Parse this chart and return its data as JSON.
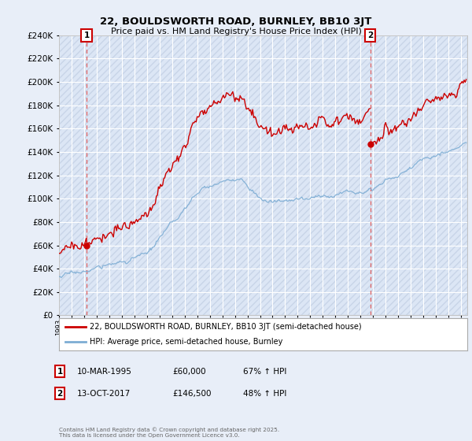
{
  "title": "22, BOULDSWORTH ROAD, BURNLEY, BB10 3JT",
  "subtitle": "Price paid vs. HM Land Registry's House Price Index (HPI)",
  "ylim": [
    0,
    240000
  ],
  "yticks": [
    0,
    20000,
    40000,
    60000,
    80000,
    100000,
    120000,
    140000,
    160000,
    180000,
    200000,
    220000,
    240000
  ],
  "xlim_start": 1993.0,
  "xlim_end": 2025.5,
  "sale1_year": 1995.19,
  "sale1_price": 60000,
  "sale1_label": "1",
  "sale2_year": 2017.79,
  "sale2_price": 146500,
  "sale2_label": "2",
  "legend1": "22, BOULDSWORTH ROAD, BURNLEY, BB10 3JT (semi-detached house)",
  "legend2": "HPI: Average price, semi-detached house, Burnley",
  "copyright": "Contains HM Land Registry data © Crown copyright and database right 2025.\nThis data is licensed under the Open Government Licence v3.0.",
  "line1_color": "#cc0000",
  "line2_color": "#7dadd4",
  "bg_color": "#e8eef8",
  "plot_bg": "#dce6f5",
  "grid_color": "#ffffff",
  "dashed_color": "#e06060",
  "hatch_color": "#c8d4e8"
}
